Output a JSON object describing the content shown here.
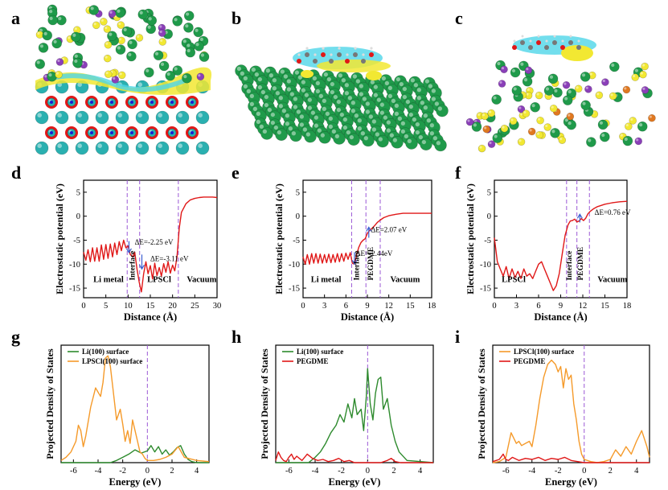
{
  "figure": {
    "panel_letters": [
      "a",
      "b",
      "c",
      "d",
      "e",
      "f",
      "g",
      "h",
      "i"
    ],
    "colors": {
      "green": "#1f9a4a",
      "green_hi": "#8fe0a6",
      "yellow": "#f2e832",
      "purple": "#8a3fb8",
      "teal": "#2ab0b0",
      "red": "#e01818",
      "cyan": "#4fd6e8",
      "orange": "#e07820",
      "plot_red": "#e01818",
      "plot_green": "#2d8a2d",
      "plot_orange": "#f59a2a",
      "dash": "#9b59d6",
      "arrow": "#3a5fd0"
    }
  },
  "structures": {
    "a": {
      "icon": "li-metal-lpscl-interface-charge-density"
    },
    "b": {
      "icon": "li-surface-pegdme-charge-density"
    },
    "c": {
      "icon": "lpscl-surface-pegdme-charge-density"
    }
  },
  "chart_data": [
    {
      "panel": "d",
      "type": "line",
      "xlabel": "Distance (Å)",
      "ylabel": "Electrostatic potential (eV)",
      "xlim": [
        0,
        30
      ],
      "ylim": [
        -17,
        7.5
      ],
      "xticks": [
        "0",
        "5",
        "10",
        "15",
        "20",
        "25",
        "30"
      ],
      "yticks": [
        "5",
        "0",
        "-5",
        "-10",
        "-15"
      ],
      "dashed_lines_x": [
        9.8,
        12.6,
        21.3
      ],
      "region_labels": [
        {
          "text": "Li metal",
          "x": 2.2,
          "y": -13.7
        },
        {
          "text": "LPSCl",
          "x": 14.3,
          "y": -13.7
        },
        {
          "text": "Vacuum",
          "x": 23.2,
          "y": -13.7
        }
      ],
      "vertical_region_labels": [
        {
          "text": "Interface",
          "x": 11.5,
          "y": -13.4
        }
      ],
      "annotations": [
        {
          "text": "ΔE=-2.25 eV",
          "x": 11.5,
          "y": -5.9
        },
        {
          "text": "ΔE=-3.11 eV",
          "x": 15.0,
          "y": -9.4
        }
      ],
      "arrows": [
        {
          "x1": 10.2,
          "y1": -5.2,
          "x2": 10.2,
          "y2": -7.6
        },
        {
          "x1": 13.1,
          "y1": -8.0,
          "x2": 13.1,
          "y2": -11.0
        }
      ],
      "series": [
        {
          "name": "potential",
          "color": "#e01818",
          "x": [
            0,
            0.5,
            1,
            1.5,
            2,
            2.5,
            3,
            3.5,
            4,
            4.5,
            5,
            5.5,
            6,
            6.5,
            7,
            7.5,
            8,
            8.5,
            9,
            9.5,
            10,
            10.5,
            11,
            11.5,
            12,
            12.5,
            13,
            13.5,
            14,
            14.5,
            15,
            15.5,
            16,
            16.5,
            17,
            17.5,
            18,
            18.5,
            19,
            19.5,
            20,
            20.5,
            21,
            21.5,
            22,
            23,
            24,
            25,
            26,
            27,
            28,
            29,
            30
          ],
          "y": [
            -7.5,
            -9.2,
            -7.0,
            -9.5,
            -6.6,
            -9.4,
            -6.6,
            -9.4,
            -6.0,
            -9.0,
            -5.9,
            -8.8,
            -5.8,
            -8.5,
            -5.6,
            -8.0,
            -5.3,
            -7.2,
            -5.0,
            -6.6,
            -6.2,
            -8.0,
            -8.5,
            -7.5,
            -11.0,
            -13.8,
            -15.8,
            -12.0,
            -9.5,
            -12.0,
            -10.3,
            -13.1,
            -9.8,
            -12.4,
            -10.7,
            -12.5,
            -9.9,
            -11.7,
            -9.5,
            -11.9,
            -10.2,
            -11.4,
            -8.5,
            -2.5,
            0.8,
            2.6,
            3.4,
            3.7,
            3.9,
            4.0,
            4.0,
            4.0,
            3.9
          ]
        }
      ]
    },
    {
      "panel": "e",
      "type": "line",
      "xlabel": "Distance (Å)",
      "ylabel": "Electrostatic potential (eV)",
      "xlim": [
        0,
        18
      ],
      "ylim": [
        -17,
        7.5
      ],
      "xticks": [
        "0",
        "3",
        "6",
        "9",
        "12",
        "15",
        "18"
      ],
      "yticks": [
        "5",
        "0",
        "-5",
        "-10",
        "-15"
      ],
      "dashed_lines_x": [
        6.8,
        8.8,
        10.8
      ],
      "region_labels": [
        {
          "text": "Li metal",
          "x": 1.1,
          "y": -13.7
        },
        {
          "text": "Vacuum",
          "x": 12.2,
          "y": -13.7
        }
      ],
      "vertical_region_labels": [
        {
          "text": "Interface",
          "x": 7.8,
          "y": -13.4
        },
        {
          "text": "PEGDME",
          "x": 9.8,
          "y": -13.4
        }
      ],
      "annotations": [
        {
          "text": "ΔE=2.07 eV",
          "x": 9.5,
          "y": -3.3
        },
        {
          "text": "ΔE=-2.44eV",
          "x": 7.4,
          "y": -8.3
        }
      ],
      "arrows": [
        {
          "x1": 7.2,
          "y1": -7.5,
          "x2": 7.2,
          "y2": -10.0
        },
        {
          "x1": 9.2,
          "y1": -4.5,
          "x2": 9.2,
          "y2": -2.3
        }
      ],
      "series": [
        {
          "name": "potential",
          "color": "#e01818",
          "x": [
            0,
            0.3,
            0.6,
            0.9,
            1.2,
            1.5,
            1.8,
            2.1,
            2.4,
            2.7,
            3.0,
            3.3,
            3.6,
            3.9,
            4.2,
            4.5,
            4.8,
            5.1,
            5.4,
            5.7,
            6.0,
            6.3,
            6.6,
            6.9,
            7.2,
            7.5,
            7.8,
            8.1,
            8.4,
            8.7,
            9.0,
            9.3,
            9.6,
            10.0,
            10.4,
            10.8,
            11.3,
            12,
            13,
            14,
            15,
            16,
            17,
            18
          ],
          "y": [
            -8.5,
            -10.0,
            -8.0,
            -10.0,
            -7.8,
            -9.8,
            -7.8,
            -9.8,
            -7.9,
            -9.8,
            -8.0,
            -9.7,
            -7.9,
            -9.7,
            -8.0,
            -9.6,
            -7.8,
            -9.5,
            -7.8,
            -9.4,
            -7.7,
            -9.0,
            -7.6,
            -9.8,
            -10.0,
            -8.0,
            -6.5,
            -5.5,
            -5.0,
            -4.7,
            -3.6,
            -3.0,
            -2.6,
            -2.0,
            -1.3,
            -0.8,
            -0.3,
            0.1,
            0.4,
            0.6,
            0.6,
            0.6,
            0.6,
            0.6
          ]
        }
      ]
    },
    {
      "panel": "f",
      "type": "line",
      "xlabel": "Distance (Å)",
      "ylabel": "Electrostatic potential (eV)",
      "xlim": [
        0,
        18
      ],
      "ylim": [
        -17,
        7.5
      ],
      "xticks": [
        "0",
        "3",
        "6",
        "9",
        "12",
        "15",
        "18"
      ],
      "yticks": [
        "5",
        "0",
        "-5",
        "-10",
        "-15"
      ],
      "dashed_lines_x": [
        9.8,
        11.2,
        12.9
      ],
      "region_labels": [
        {
          "text": "LPSCl",
          "x": 1.0,
          "y": -13.7
        },
        {
          "text": "Vacuum",
          "x": 14.0,
          "y": -13.7
        }
      ],
      "vertical_region_labels": [
        {
          "text": "Interface",
          "x": 10.5,
          "y": -13.4
        },
        {
          "text": "PEGDME",
          "x": 12.0,
          "y": -13.4
        }
      ],
      "annotations": [
        {
          "text": "ΔE=0.76 eV",
          "x": 13.6,
          "y": 0.3
        }
      ],
      "arrows": [
        {
          "x1": 11.6,
          "y1": -1.3,
          "x2": 11.6,
          "y2": 0.4
        }
      ],
      "series": [
        {
          "name": "potential",
          "color": "#e01818",
          "x": [
            0,
            0.4,
            0.8,
            1.2,
            1.6,
            2.0,
            2.4,
            2.8,
            3.2,
            3.6,
            4.0,
            4.4,
            4.8,
            5.2,
            5.6,
            6.0,
            6.4,
            6.8,
            7.2,
            7.6,
            8.0,
            8.4,
            8.8,
            9.2,
            9.6,
            10.0,
            10.3,
            10.6,
            10.9,
            11.2,
            11.5,
            11.8,
            12.1,
            12.4,
            12.7,
            13.0,
            13.5,
            14,
            15,
            16,
            17,
            18
          ],
          "y": [
            -4.5,
            -9.5,
            -11.0,
            -12.5,
            -10.5,
            -13.0,
            -11.0,
            -12.8,
            -11.5,
            -13.0,
            -11.0,
            -12.5,
            -12.0,
            -13.0,
            -11.5,
            -10.0,
            -9.5,
            -11.0,
            -12.5,
            -14.0,
            -15.5,
            -14.5,
            -12.0,
            -8.0,
            -4.0,
            -1.8,
            -1.0,
            -0.9,
            -0.6,
            -1.2,
            -1.0,
            -0.5,
            -0.9,
            -0.4,
            0.5,
            1.0,
            1.6,
            2.0,
            2.5,
            2.8,
            3.0,
            3.1
          ]
        }
      ]
    },
    {
      "panel": "g",
      "type": "line",
      "xlabel": "Energy (eV)",
      "ylabel": "Projected Density of States",
      "xlim": [
        -7,
        5
      ],
      "ylim": [
        0,
        1.1
      ],
      "xticks": [
        "-6",
        "-4",
        "-2",
        "0",
        "2",
        "4"
      ],
      "yticks": [],
      "fermi_x": 0,
      "legend": "top-left",
      "series": [
        {
          "name": "Li(100) surface",
          "color": "#2d8a2d",
          "x": [
            -7,
            -3,
            -2.5,
            -2,
            -1.5,
            -1.0,
            -0.5,
            0,
            0.3,
            0.6,
            0.9,
            1.2,
            1.5,
            1.8,
            2.1,
            2.4,
            2.7,
            3.0,
            3.3,
            3.6,
            4,
            5
          ],
          "y": [
            0,
            0,
            0.02,
            0.05,
            0.08,
            0.12,
            0.09,
            0.11,
            0.16,
            0.1,
            0.15,
            0.08,
            0.12,
            0.07,
            0.1,
            0.14,
            0.16,
            0.08,
            0.03,
            0.01,
            0,
            0
          ]
        },
        {
          "name": "LPSCl(100) surface",
          "color": "#f59a2a",
          "x": [
            -7,
            -6.6,
            -6.2,
            -5.8,
            -5.6,
            -5.4,
            -5.2,
            -5.0,
            -4.6,
            -4.2,
            -3.8,
            -3.6,
            -3.4,
            -3.2,
            -3.0,
            -2.8,
            -2.5,
            -2.2,
            -2.0,
            -1.8,
            -1.6,
            -1.4,
            -1.2,
            -1.0,
            -0.8,
            -0.6,
            -0.4,
            -0.2,
            0,
            0.5,
            1,
            1.5,
            2,
            2.5,
            3,
            4,
            5
          ],
          "y": [
            0.02,
            0.05,
            0.1,
            0.2,
            0.35,
            0.3,
            0.15,
            0.25,
            0.52,
            0.7,
            0.62,
            0.75,
            0.98,
            1.0,
            0.9,
            0.7,
            0.4,
            0.5,
            0.36,
            0.2,
            0.3,
            0.18,
            0.4,
            0.3,
            0.2,
            0.1,
            0.08,
            0.04,
            0.02,
            0.02,
            0.03,
            0.05,
            0.08,
            0.15,
            0.05,
            0.02,
            0.01
          ]
        }
      ]
    },
    {
      "panel": "h",
      "type": "line",
      "xlabel": "Energy (eV)",
      "ylabel": "Projected Density of States",
      "xlim": [
        -7,
        5
      ],
      "ylim": [
        0,
        1.1
      ],
      "xticks": [
        "-6",
        "-4",
        "-2",
        "0",
        "2",
        "4"
      ],
      "yticks": [],
      "fermi_x": 0,
      "legend": "top-left",
      "series": [
        {
          "name": "Li(100) surface",
          "color": "#2d8a2d",
          "x": [
            -7,
            -4.5,
            -4.0,
            -3.6,
            -3.2,
            -2.8,
            -2.4,
            -2.1,
            -1.8,
            -1.5,
            -1.2,
            -1.0,
            -0.8,
            -0.5,
            -0.3,
            -0.1,
            0.0,
            0.2,
            0.4,
            0.6,
            0.8,
            1.0,
            1.2,
            1.5,
            1.8,
            2.1,
            2.4,
            3,
            5
          ],
          "y": [
            0,
            0,
            0.05,
            0.1,
            0.18,
            0.28,
            0.35,
            0.45,
            0.38,
            0.55,
            0.42,
            0.6,
            0.45,
            0.5,
            0.3,
            0.62,
            0.88,
            0.55,
            0.4,
            0.65,
            0.78,
            0.8,
            0.5,
            0.6,
            0.35,
            0.2,
            0.1,
            0.02,
            0
          ]
        },
        {
          "name": "PEGDME",
          "color": "#e01818",
          "x": [
            -7,
            -6.8,
            -6.6,
            -6.4,
            -6.2,
            -6.0,
            -5.8,
            -5.6,
            -5.4,
            -5.2,
            -5.0,
            -4.6,
            -4.2,
            -3.8,
            -3.4,
            -3.0,
            -2.6,
            -2.2,
            -1.8,
            -1.4,
            -1.0,
            0,
            1,
            1.5,
            1.8,
            2.1,
            2.5,
            3,
            5
          ],
          "y": [
            0.02,
            0.1,
            0.05,
            0.02,
            0.01,
            0.05,
            0.08,
            0.03,
            0.06,
            0.04,
            0.02,
            0.08,
            0.04,
            0.02,
            0.03,
            0.01,
            0.02,
            0.04,
            0.01,
            0.02,
            0.0,
            0.0,
            0.0,
            0.02,
            0.04,
            0.01,
            0.0,
            0.0,
            0.0
          ]
        }
      ]
    },
    {
      "panel": "i",
      "type": "line",
      "xlabel": "Energy (eV)",
      "ylabel": "Projected Density of States",
      "xlim": [
        -7,
        5
      ],
      "ylim": [
        0,
        1.1
      ],
      "xticks": [
        "-6",
        "-4",
        "-2",
        "0",
        "2",
        "4"
      ],
      "yticks": [],
      "fermi_x": 0,
      "legend": "top-left",
      "series": [
        {
          "name": "LPSCl(100) surface",
          "color": "#f59a2a",
          "x": [
            -7,
            -6.5,
            -6.0,
            -5.6,
            -5.2,
            -5.0,
            -4.8,
            -4.5,
            -4.2,
            -4.0,
            -3.7,
            -3.4,
            -3.1,
            -2.8,
            -2.5,
            -2.2,
            -2.0,
            -1.8,
            -1.6,
            -1.4,
            -1.2,
            -1.0,
            -0.8,
            -0.6,
            -0.4,
            -0.2,
            0,
            0.5,
            1.0,
            1.5,
            2.0,
            2.4,
            2.8,
            3.2,
            3.6,
            4.0,
            4.4,
            4.8,
            5
          ],
          "y": [
            0,
            0.01,
            0.05,
            0.28,
            0.18,
            0.2,
            0.16,
            0.18,
            0.2,
            0.15,
            0.35,
            0.6,
            0.8,
            0.92,
            0.96,
            0.92,
            0.85,
            0.9,
            0.7,
            0.88,
            0.78,
            0.82,
            0.55,
            0.4,
            0.2,
            0.08,
            0.03,
            0.01,
            0.0,
            0.01,
            0.03,
            0.12,
            0.06,
            0.15,
            0.08,
            0.2,
            0.3,
            0.15,
            0.05
          ]
        },
        {
          "name": "PEGDME",
          "color": "#e01818",
          "x": [
            -7,
            -6.5,
            -6.2,
            -6.0,
            -5.8,
            -5.5,
            -5.0,
            -4.5,
            -4.0,
            -3.5,
            -3.0,
            -2.5,
            -2.0,
            -1.5,
            -1.0,
            -0.5,
            0,
            1,
            2,
            3,
            4,
            5
          ],
          "y": [
            0.01,
            0.03,
            0.08,
            0.03,
            0.02,
            0.05,
            0.02,
            0.04,
            0.03,
            0.05,
            0.02,
            0.04,
            0.03,
            0.05,
            0.02,
            0.01,
            0.0,
            0.0,
            0.0,
            0.0,
            0.0,
            0.0
          ]
        }
      ]
    }
  ]
}
